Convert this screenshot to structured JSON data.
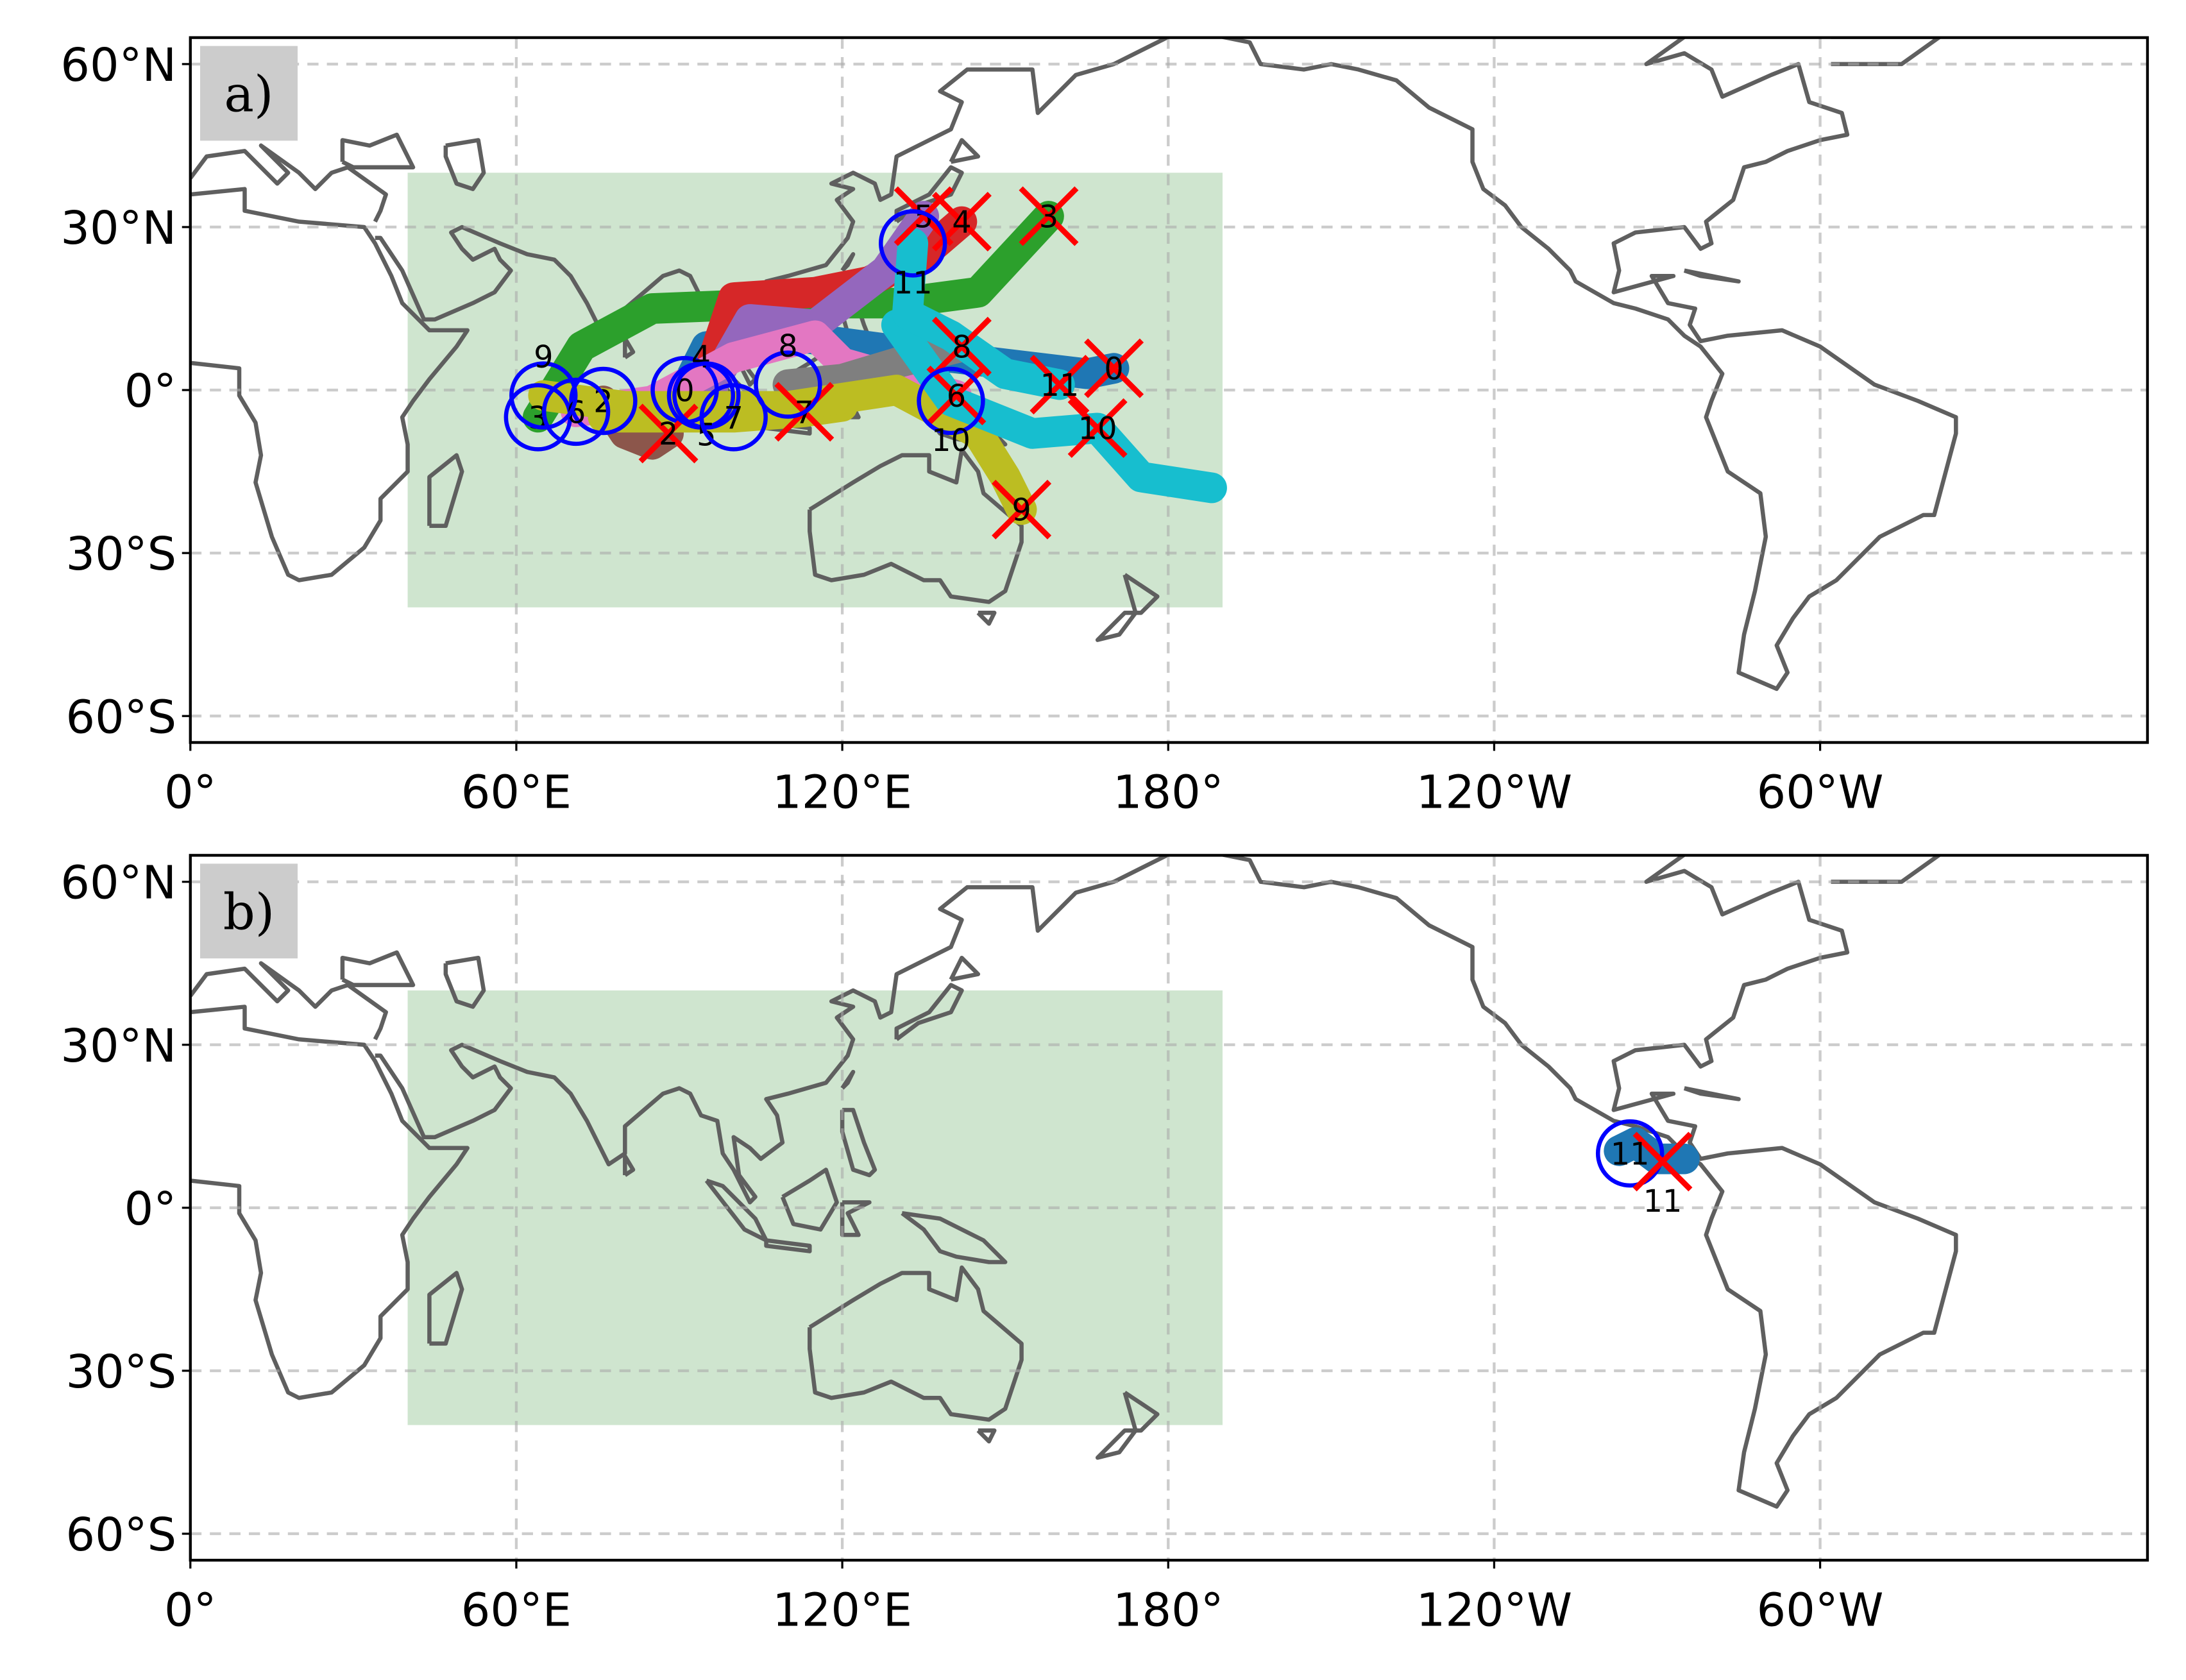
{
  "map": {
    "projection": "PlateCarree, central longitude 180",
    "lon_range": [
      0,
      360
    ],
    "lat_range": [
      -65,
      65
    ],
    "grid": true,
    "x_tick_labels": [
      {
        "lon": 0,
        "label": "0°"
      },
      {
        "lon": 60,
        "label": "60°E"
      },
      {
        "lon": 120,
        "label": "120°E"
      },
      {
        "lon": 180,
        "label": "180°"
      },
      {
        "lon": 240,
        "label": "120°W"
      },
      {
        "lon": 300,
        "label": "60°W"
      }
    ],
    "y_tick_labels": [
      {
        "lat": 60,
        "label": "60°N"
      },
      {
        "lat": 30,
        "label": "30°N"
      },
      {
        "lat": 0,
        "label": "0°"
      },
      {
        "lat": -30,
        "label": "30°S"
      },
      {
        "lat": -60,
        "label": "60°S"
      }
    ],
    "region_box": {
      "lon": [
        40,
        190
      ],
      "lat": [
        -40,
        40
      ],
      "color": "#cfe5cf"
    },
    "colors": {
      "coastline": "#5f5f5f",
      "genesis_circle": "#0000ff",
      "lysis_cross": "#ff0000"
    }
  },
  "panels": [
    {
      "label": "a)",
      "storms": [
        {
          "id": "0",
          "color": "#1f77b4",
          "track": [
            [
              91,
              0
            ],
            [
              95,
              8
            ],
            [
              110,
              10
            ],
            [
              140,
              6
            ],
            [
              165,
              3
            ],
            [
              170,
              4
            ]
          ],
          "genesis": [
            91,
            0
          ],
          "lysis": [
            170,
            4
          ]
        },
        {
          "id": "2",
          "color": "#8c564b",
          "track": [
            [
              76,
              -2
            ],
            [
              80,
              -8
            ],
            [
              85,
              -10
            ],
            [
              88,
              -8
            ]
          ],
          "genesis": [
            76,
            -2
          ],
          "lysis": [
            88,
            -8
          ]
        },
        {
          "id": "3",
          "color": "#2ca02c",
          "track": [
            [
              64,
              -5
            ],
            [
              72,
              8
            ],
            [
              85,
              15
            ],
            [
              110,
              16
            ],
            [
              130,
              16
            ],
            [
              145,
              18
            ],
            [
              158,
              32
            ]
          ],
          "genesis": [
            64,
            -5
          ],
          "lysis": [
            158,
            32
          ]
        },
        {
          "id": "4",
          "color": "#d62728",
          "track": [
            [
              94,
              -1
            ],
            [
              100,
              17
            ],
            [
              115,
              18
            ],
            [
              125,
              20
            ],
            [
              135,
              25
            ],
            [
              142,
              31
            ]
          ],
          "genesis": [
            94,
            -1
          ],
          "lysis": [
            142,
            31
          ]
        },
        {
          "id": "5",
          "color": "#9467bd",
          "track": [
            [
              95,
              -1
            ],
            [
              103,
              13
            ],
            [
              115,
              12
            ],
            [
              128,
              22
            ],
            [
              135,
              32
            ]
          ],
          "genesis": [
            95,
            -1
          ],
          "lysis": [
            135,
            32
          ]
        },
        {
          "id": "6",
          "color": "#e377c2",
          "track": [
            [
              71,
              -4
            ],
            [
              85,
              -2
            ],
            [
              100,
              6
            ],
            [
              115,
              10
            ],
            [
              120,
              5
            ],
            [
              141,
              -1
            ]
          ],
          "genesis": [
            71,
            -4
          ],
          "lysis": [
            141,
            -1
          ]
        },
        {
          "id": "7",
          "color": "#bcbd22",
          "track": [
            [
              76,
              -5
            ],
            [
              90,
              -5
            ],
            [
              100,
              -5
            ],
            [
              113,
              -4
            ],
            [
              120,
              -3
            ]
          ],
          "genesis": [
            100,
            -5
          ],
          "lysis": [
            113,
            -4
          ]
        },
        {
          "id": "8",
          "color": "#7f7f7f",
          "track": [
            [
              110,
              1
            ],
            [
              120,
              2
            ],
            [
              130,
              5
            ],
            [
              142,
              8
            ]
          ],
          "genesis": [
            110,
            1
          ],
          "lysis": [
            142,
            8
          ]
        },
        {
          "id": "9",
          "color": "#bcbd22",
          "track": [
            [
              65,
              -1
            ],
            [
              80,
              -3
            ],
            [
              110,
              -3
            ],
            [
              130,
              0
            ],
            [
              145,
              -8
            ],
            [
              150,
              -16
            ],
            [
              153,
              -22
            ]
          ],
          "genesis": [
            65,
            -1
          ],
          "lysis": [
            153,
            -22
          ]
        },
        {
          "id": "10",
          "color": "#17becf",
          "track": [
            [
              130,
              12
            ],
            [
              140,
              -2
            ],
            [
              155,
              -8
            ],
            [
              167,
              -7
            ],
            [
              175,
              -16
            ],
            [
              188,
              -18
            ]
          ],
          "genesis": [
            140,
            -2
          ],
          "lysis": [
            167,
            -7
          ]
        },
        {
          "id": "11",
          "color": "#17becf",
          "track": [
            [
              133,
              27
            ],
            [
              132,
              14
            ],
            [
              140,
              10
            ],
            [
              150,
              3
            ],
            [
              160,
              1
            ]
          ],
          "genesis": [
            133,
            27
          ],
          "lysis": [
            160,
            1
          ]
        }
      ]
    },
    {
      "label": "b)",
      "storms": [
        {
          "id": "11",
          "color": "#1f77b4",
          "track": [
            [
              263,
              10.5
            ],
            [
              266,
              12
            ],
            [
              270,
              9
            ],
            [
              275,
              9
            ]
          ],
          "genesis": [
            265,
            10
          ],
          "lysis": [
            271,
            8.5
          ]
        }
      ]
    }
  ]
}
